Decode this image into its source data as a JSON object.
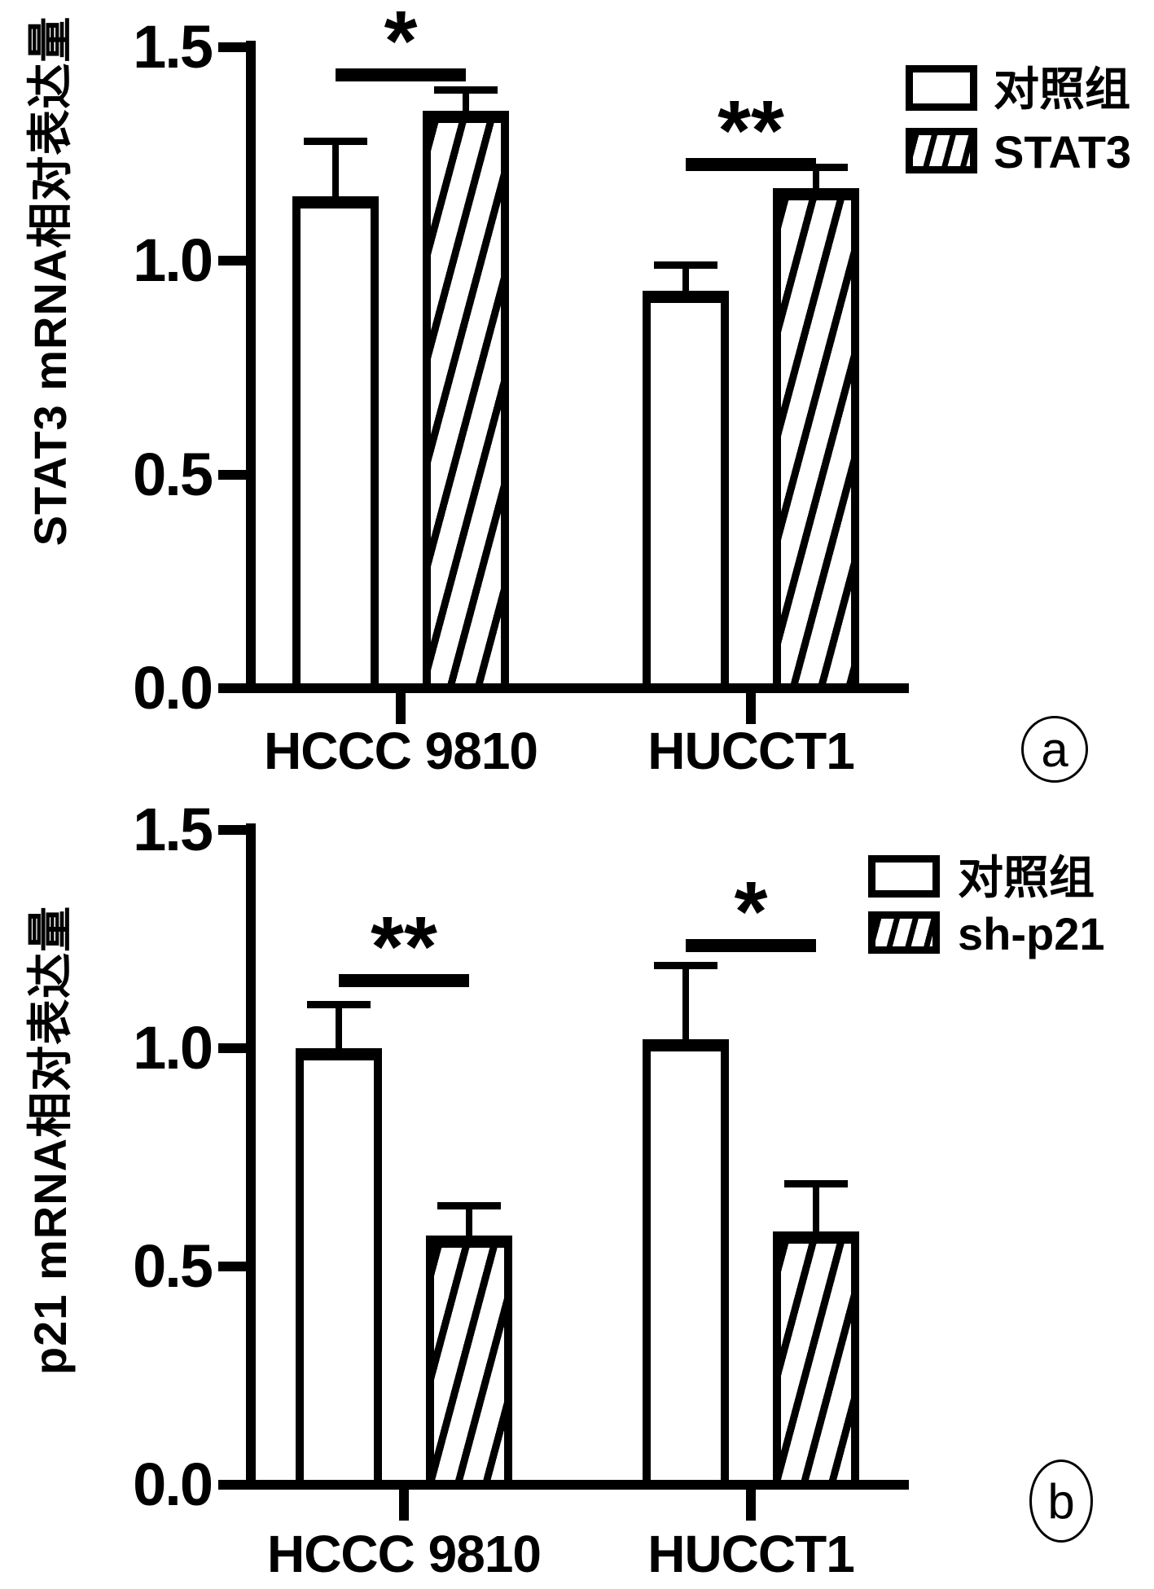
{
  "figure": {
    "background": "#ffffff",
    "foreground": "#000000",
    "panel_labels": [
      "a",
      "b"
    ]
  },
  "chart_data": [
    {
      "type": "bar",
      "panel_label": "a",
      "title": "",
      "xlabel": "",
      "ylabel": "STAT3 mRNA相对表达量",
      "categories": [
        "HCCC 9810",
        "HUCCT1"
      ],
      "series": [
        {
          "name": "对照组",
          "fill": "white",
          "values": [
            1.15,
            0.93
          ],
          "errors_plus": [
            0.13,
            0.06
          ]
        },
        {
          "name": "STAT3",
          "fill": "hatched",
          "values": [
            1.35,
            1.17
          ],
          "errors_plus": [
            0.05,
            0.05
          ]
        }
      ],
      "significance": [
        {
          "group": "HCCC 9810",
          "label": "*",
          "height": 1.45
        },
        {
          "group": "HUCCT1",
          "label": "**",
          "height": 1.24
        }
      ],
      "yticks": [
        0,
        0.5,
        1,
        1.5
      ],
      "ytick_labels": [
        "0.0",
        "0.5",
        "1.0",
        "1.5"
      ],
      "ylim": [
        0,
        1.5
      ],
      "grid": false,
      "legend_position": "top-right"
    },
    {
      "type": "bar",
      "panel_label": "b",
      "title": "",
      "xlabel": "",
      "ylabel": "p21 mRNA相对表达量",
      "categories": [
        "HCCC 9810",
        "HUCCT1"
      ],
      "series": [
        {
          "name": "对照组",
          "fill": "white",
          "values": [
            1.0,
            1.02
          ],
          "errors_plus": [
            0.1,
            0.17
          ]
        },
        {
          "name": "sh-p21",
          "fill": "hatched",
          "values": [
            0.57,
            0.58
          ],
          "errors_plus": [
            0.07,
            0.11
          ]
        }
      ],
      "significance": [
        {
          "group": "HCCC 9810",
          "label": "**",
          "height": 1.17
        },
        {
          "group": "HUCCT1",
          "label": "*",
          "height": 1.25
        }
      ],
      "yticks": [
        0,
        0.5,
        1,
        1.5
      ],
      "ytick_labels": [
        "0.0",
        "0.5",
        "1.0",
        "1.5"
      ],
      "ylim": [
        0,
        1.5
      ],
      "grid": false,
      "legend_position": "top-right"
    }
  ]
}
